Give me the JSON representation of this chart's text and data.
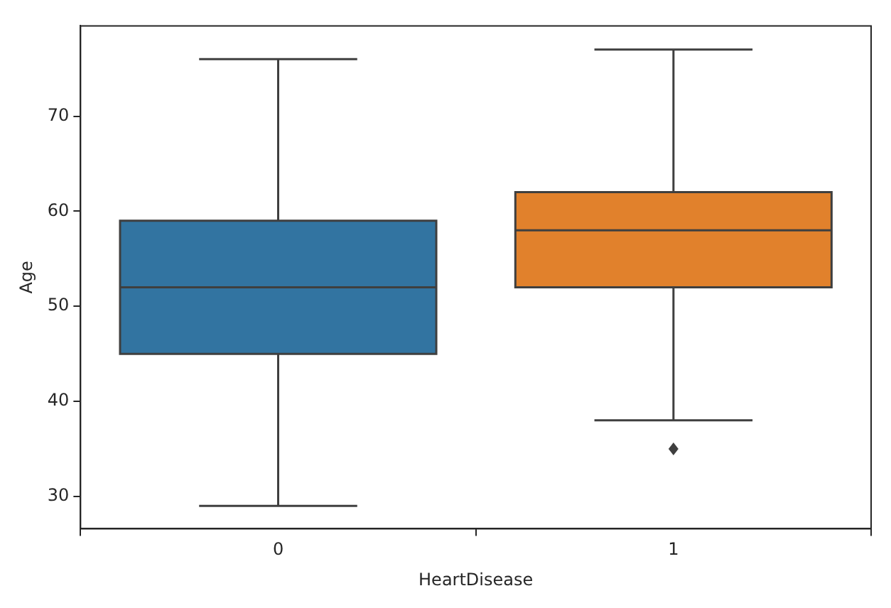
{
  "chart_data": {
    "type": "box",
    "xlabel": "HeartDisease",
    "ylabel": "Age",
    "categories": [
      "0",
      "1"
    ],
    "colors": [
      "#3274a1",
      "#e1812c"
    ],
    "boxes": [
      {
        "low": 29,
        "q1": 45,
        "median": 52,
        "q3": 59,
        "high": 76
      },
      {
        "low": 38,
        "q1": 52,
        "median": 58,
        "q3": 62,
        "high": 77,
        "outliers": [
          35
        ]
      }
    ],
    "ylim": [
      26.6,
      79.5
    ],
    "yticks": [
      30,
      40,
      50,
      60,
      70
    ],
    "grid": false,
    "legend": false
  }
}
